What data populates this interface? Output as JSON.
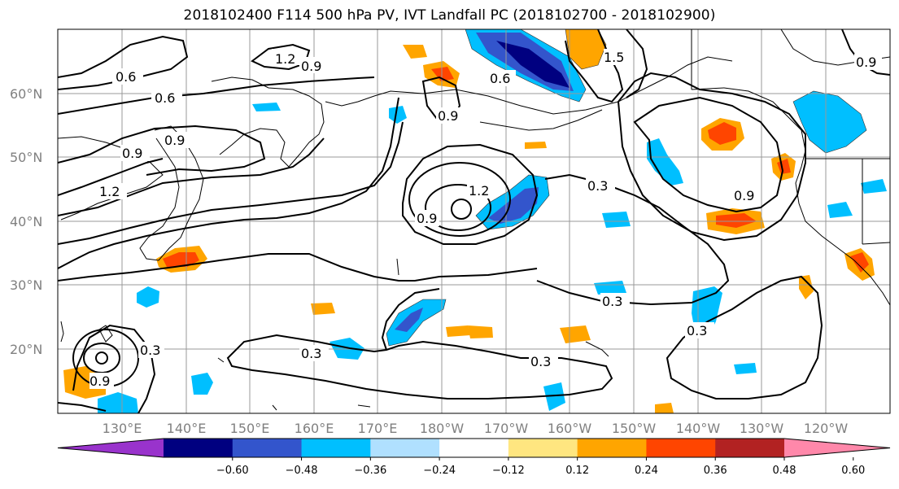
{
  "title": "2018102400 F114 500 hPa PV, IVT Landfall PC (2018102700 - 2018102900)",
  "lat_labels": [
    "60°N",
    "50°N",
    "40°N",
    "30°N",
    "20°N"
  ],
  "lon_labels": [
    "130°E",
    "140°E",
    "150°E",
    "160°E",
    "170°E",
    "180°W",
    "170°W",
    "160°W",
    "150°W",
    "140°W",
    "130°W",
    "120°W"
  ],
  "colorbar": {
    "colors": [
      "#9933cc",
      "#000080",
      "#3355cc",
      "#00bfff",
      "#b0e0ff",
      "#ffffff",
      "#ffe680",
      "#ffa500",
      "#ff4500",
      "#b22222",
      "#ff88aa"
    ],
    "tick_labels": [
      "-0.60",
      "-0.48",
      "-0.36",
      "-0.24",
      "-0.12",
      "0.12",
      "0.24",
      "0.36",
      "0.48",
      "0.60"
    ]
  },
  "contour_labels": [
    "0.6",
    "0.6",
    "1.2",
    "0.9",
    "0.9",
    "0.9",
    "1.2",
    "0.9",
    "1.2",
    "0.9",
    "0.3",
    "0.3",
    "0.3",
    "0.3",
    "0.3",
    "0.3",
    "0.9",
    "0.9",
    "1.5",
    "0.6",
    "0.9"
  ]
}
